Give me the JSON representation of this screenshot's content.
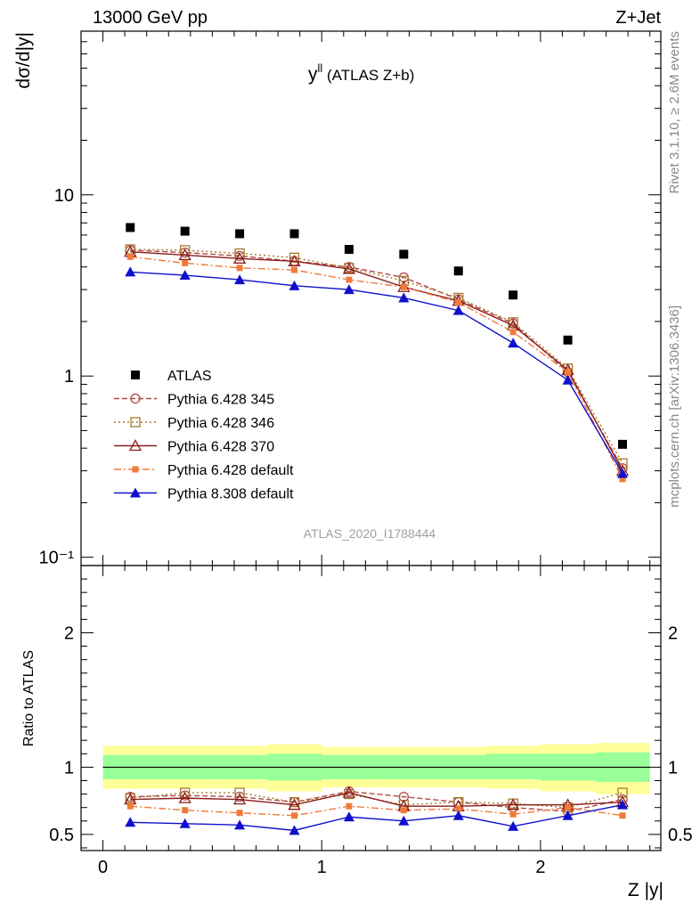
{
  "header": {
    "energy_label": "13000 GeV pp",
    "process_label": "Z+Jet"
  },
  "side_text": {
    "rivet": "Rivet 3.1.10, ≥ 2.6M events",
    "mcplots": "mcplots.cern.ch [arXiv:1306.3436]"
  },
  "chart_data": [
    {
      "type": "scatter",
      "panel": "main",
      "title": "y^{ll} (ATLAS Z+b)",
      "title_base": "y",
      "title_sup": "ll",
      "title_rest": " (ATLAS Z+b)",
      "ylabel": "dσ/d|y|",
      "watermark": "ATLAS_2020_I1788444",
      "xlim": [
        -0.1,
        2.55
      ],
      "ylim": [
        0.09,
        80
      ],
      "yscale": "log",
      "yticks": [
        {
          "value": 0.1,
          "label": "10⁻¹"
        },
        {
          "value": 1,
          "label": "1"
        },
        {
          "value": 10,
          "label": "10"
        }
      ],
      "legend_position": "lower-left",
      "x": [
        0.125,
        0.375,
        0.625,
        0.875,
        1.125,
        1.375,
        1.625,
        1.875,
        2.125,
        2.375
      ],
      "series": [
        {
          "name": "ATLAS",
          "color": "#000000",
          "marker": "square-filled",
          "line": "none",
          "values": [
            6.6,
            6.3,
            6.1,
            6.1,
            5.0,
            4.7,
            3.8,
            2.8,
            1.58,
            0.42
          ]
        },
        {
          "name": "Pythia 6.428 345",
          "color": "#b0474a",
          "marker": "circle-open",
          "line": "dashed",
          "values": [
            4.95,
            4.8,
            4.6,
            4.3,
            4.0,
            3.5,
            2.65,
            1.95,
            1.05,
            0.31
          ]
        },
        {
          "name": "Pythia 6.428 346",
          "color": "#a57a2c",
          "marker": "square-open",
          "line": "dotted",
          "values": [
            5.0,
            4.95,
            4.75,
            4.5,
            3.95,
            3.35,
            2.7,
            1.98,
            1.1,
            0.33
          ]
        },
        {
          "name": "Pythia 6.428 370",
          "color": "#8b1a1a",
          "marker": "triangle-open",
          "line": "solid",
          "values": [
            4.85,
            4.65,
            4.45,
            4.3,
            3.9,
            3.1,
            2.6,
            1.9,
            1.08,
            0.3
          ]
        },
        {
          "name": "Pythia 6.428 default",
          "color": "#f07a3a",
          "marker": "square-small",
          "line": "dashdot",
          "values": [
            4.55,
            4.2,
            3.95,
            3.85,
            3.4,
            3.1,
            2.55,
            1.75,
            1.05,
            0.27
          ]
        },
        {
          "name": "Pythia 8.308 default",
          "color": "#1010cc",
          "marker": "triangle-filled",
          "line": "solid",
          "values": [
            3.75,
            3.6,
            3.4,
            3.15,
            3.0,
            2.7,
            2.3,
            1.52,
            0.95,
            0.29
          ]
        }
      ]
    },
    {
      "type": "line",
      "panel": "ratio",
      "ylabel": "Ratio to ATLAS",
      "xlabel": "Z |y|",
      "xlim": [
        -0.1,
        2.55
      ],
      "ylim": [
        0.38,
        2.5
      ],
      "xticks": [
        0,
        1,
        2
      ],
      "yticks": [
        0.5,
        1,
        2
      ],
      "reference": 1,
      "bin_edges": [
        0,
        0.25,
        0.5,
        0.75,
        1.0,
        1.25,
        1.5,
        1.75,
        2.0,
        2.25,
        2.5
      ],
      "band_inner": [
        [
          0.91,
          1.09
        ],
        [
          0.91,
          1.09
        ],
        [
          0.91,
          1.09
        ],
        [
          0.9,
          1.1
        ],
        [
          0.91,
          1.09
        ],
        [
          0.91,
          1.09
        ],
        [
          0.91,
          1.09
        ],
        [
          0.91,
          1.1
        ],
        [
          0.9,
          1.1
        ],
        [
          0.89,
          1.11
        ]
      ],
      "band_outer": [
        [
          0.84,
          1.16
        ],
        [
          0.84,
          1.16
        ],
        [
          0.84,
          1.16
        ],
        [
          0.82,
          1.17
        ],
        [
          0.85,
          1.15
        ],
        [
          0.85,
          1.15
        ],
        [
          0.85,
          1.15
        ],
        [
          0.84,
          1.16
        ],
        [
          0.82,
          1.17
        ],
        [
          0.8,
          1.18
        ]
      ],
      "band_colors": {
        "inner": "#99ff99",
        "outer": "#ffff99"
      },
      "x": [
        0.125,
        0.375,
        0.625,
        0.875,
        1.125,
        1.375,
        1.625,
        1.875,
        2.125,
        2.375
      ],
      "series": [
        {
          "name": "Pythia 6.428 345",
          "color": "#b0474a",
          "marker": "circle-open",
          "line": "dashed",
          "values": [
            0.78,
            0.79,
            0.78,
            0.74,
            0.82,
            0.78,
            0.74,
            0.7,
            0.67,
            0.76
          ]
        },
        {
          "name": "Pythia 6.428 346",
          "color": "#a57a2c",
          "marker": "square-open",
          "line": "dotted",
          "values": [
            0.77,
            0.81,
            0.81,
            0.74,
            0.8,
            0.72,
            0.74,
            0.73,
            0.7,
            0.81
          ]
        },
        {
          "name": "Pythia 6.428 370",
          "color": "#8b1a1a",
          "marker": "triangle-open",
          "line": "solid",
          "values": [
            0.76,
            0.77,
            0.76,
            0.72,
            0.81,
            0.71,
            0.71,
            0.72,
            0.72,
            0.74
          ]
        },
        {
          "name": "Pythia 6.428 default",
          "color": "#f07a3a",
          "marker": "square-small",
          "line": "dashdot",
          "values": [
            0.71,
            0.68,
            0.66,
            0.64,
            0.71,
            0.68,
            0.69,
            0.65,
            0.7,
            0.64
          ]
        },
        {
          "name": "Pythia 8.308 default",
          "color": "#1010cc",
          "marker": "triangle-filled",
          "line": "solid",
          "values": [
            0.59,
            0.58,
            0.57,
            0.53,
            0.63,
            0.6,
            0.64,
            0.56,
            0.64,
            0.72
          ]
        }
      ]
    }
  ]
}
